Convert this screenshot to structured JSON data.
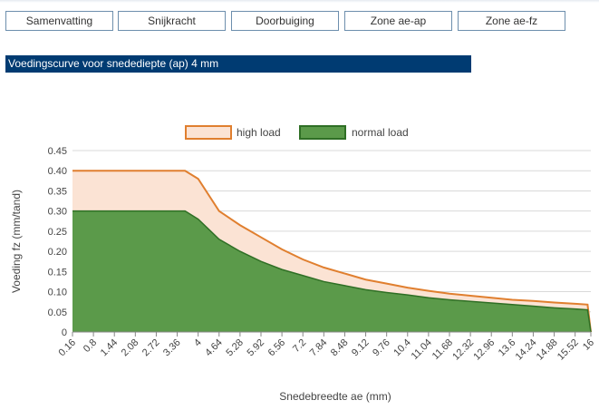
{
  "tabs": [
    {
      "label": "Samenvatting"
    },
    {
      "label": "Snijkracht"
    },
    {
      "label": "Doorbuiging"
    },
    {
      "label": "Zone ae-ap"
    },
    {
      "label": "Zone ae-fz"
    }
  ],
  "section": {
    "title": "Voedingscurve voor snedediepte (ap) 4 mm"
  },
  "colors": {
    "header_bg": "#003b72",
    "high_load_line": "#e07f2f",
    "high_load_fill": "#fbe3d4",
    "normal_load_fill": "#5b9a4a",
    "normal_load_line": "#2f6f25",
    "grid": "#d9d9d9"
  },
  "chart_data": {
    "type": "area",
    "xlabel": "Snedebreedte ae (mm)",
    "ylabel": "Voeding fz (mm/tand)",
    "ylim": [
      0,
      0.45
    ],
    "xlim": [
      0.16,
      16
    ],
    "y_ticks": [
      "0",
      "0.05",
      "0.10",
      "0.15",
      "0.20",
      "0.25",
      "0.30",
      "0.35",
      "0.40",
      "0.45"
    ],
    "x_ticks": [
      "0.16",
      "0.8",
      "1.44",
      "2.08",
      "2.72",
      "3.36",
      "4",
      "4.64",
      "5.28",
      "5.92",
      "6.56",
      "7.2",
      "7.84",
      "8.48",
      "9.12",
      "9.76",
      "10.4",
      "11.04",
      "11.68",
      "12.32",
      "12.96",
      "13.6",
      "14.24",
      "14.88",
      "15.52",
      "16"
    ],
    "grid": true,
    "legend_position": "top-center",
    "series": [
      {
        "name": "high load",
        "x": [
          0.16,
          3.6,
          4,
          4.64,
          5.28,
          5.92,
          6.56,
          7.2,
          7.84,
          8.48,
          9.12,
          9.76,
          10.4,
          11.04,
          11.68,
          12.32,
          12.96,
          13.6,
          14.24,
          14.88,
          15.52,
          15.9,
          16
        ],
        "values": [
          0.4,
          0.4,
          0.38,
          0.3,
          0.265,
          0.235,
          0.205,
          0.18,
          0.16,
          0.145,
          0.13,
          0.12,
          0.11,
          0.102,
          0.095,
          0.09,
          0.085,
          0.08,
          0.077,
          0.073,
          0.07,
          0.068,
          0.0
        ]
      },
      {
        "name": "normal load",
        "x": [
          0.16,
          3.6,
          4,
          4.64,
          5.28,
          5.92,
          6.56,
          7.2,
          7.84,
          8.48,
          9.12,
          9.76,
          10.4,
          11.04,
          11.68,
          12.32,
          12.96,
          13.6,
          14.24,
          14.88,
          15.52,
          15.9,
          16
        ],
        "values": [
          0.3,
          0.3,
          0.28,
          0.23,
          0.2,
          0.175,
          0.155,
          0.14,
          0.125,
          0.115,
          0.105,
          0.098,
          0.092,
          0.085,
          0.08,
          0.076,
          0.072,
          0.068,
          0.064,
          0.06,
          0.057,
          0.055,
          0.0
        ]
      }
    ]
  }
}
